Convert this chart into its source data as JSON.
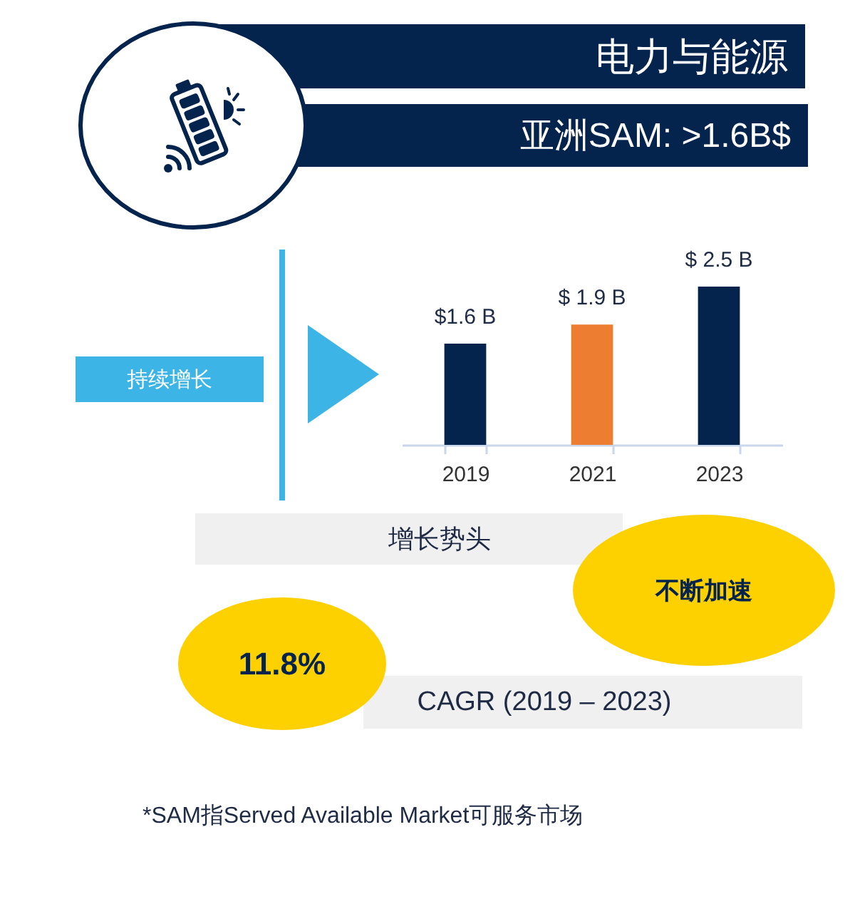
{
  "chart_data": {
    "type": "bar",
    "title": "电力与能源",
    "subtitle": "亚洲SAM: >1.6B$",
    "categories": [
      "2019",
      "2021",
      "2023"
    ],
    "values": [
      1.6,
      1.9,
      2.5
    ],
    "colors": [
      "#04234d",
      "#ed7d31",
      "#04234d"
    ],
    "value_labels": [
      "$1.6 B",
      "$ 1.9 B",
      "$ 2.5 B"
    ],
    "annotations": [
      "持续增长",
      "增长势头",
      "不断加速",
      "11.8%",
      "CAGR (2019 – 2023)",
      "*SAM指Served Available Market可服务市场"
    ]
  }
}
